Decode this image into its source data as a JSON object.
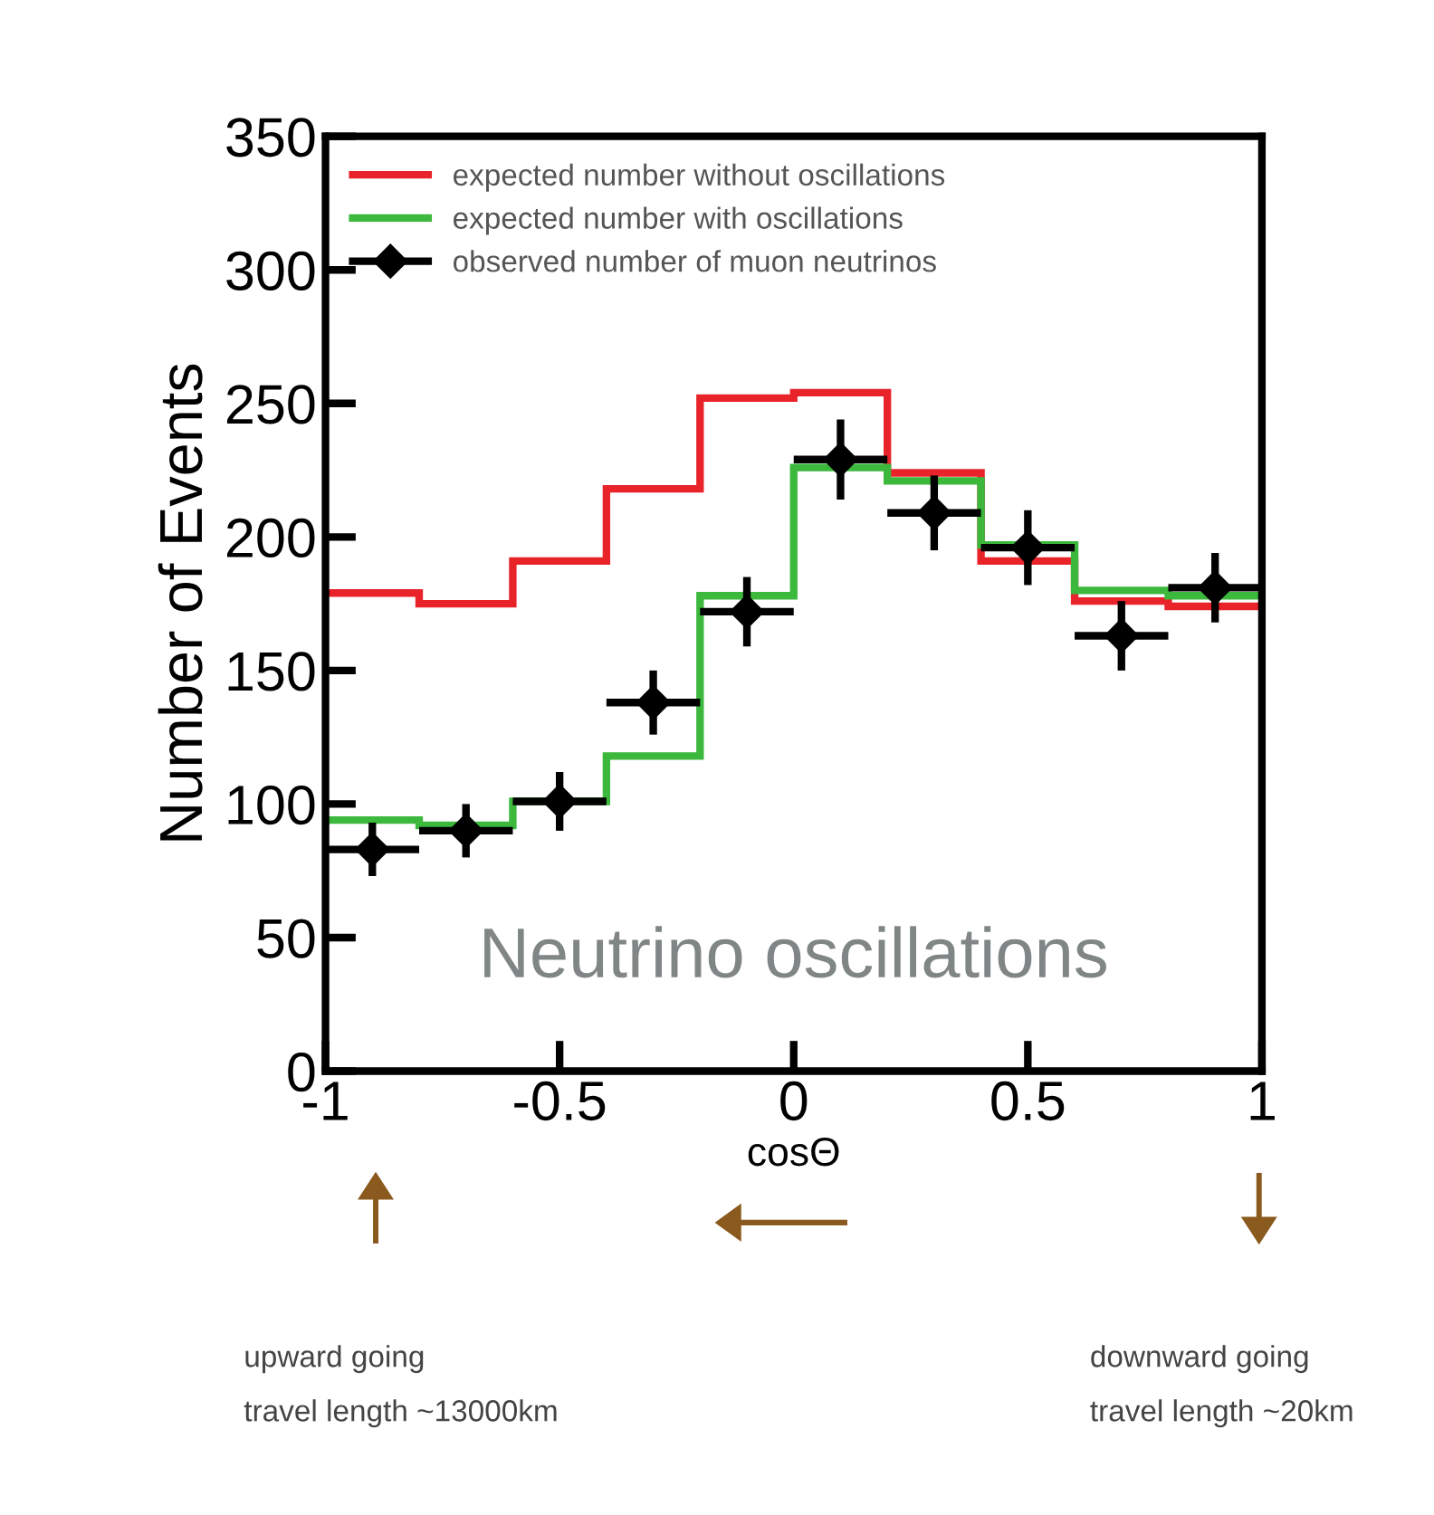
{
  "chart_data": {
    "type": "histogram",
    "ylabel": "Number of Events",
    "xlabel": "cosΘ",
    "bins": [
      -1,
      -0.8,
      -0.6,
      -0.4,
      -0.2,
      0,
      0.2,
      0.4,
      0.6,
      0.8,
      1
    ],
    "series": [
      {
        "name": "expected number without oscillations",
        "color": "#e8232a",
        "values": [
          179,
          175,
          191,
          218,
          252,
          254,
          224,
          191,
          176,
          174
        ]
      },
      {
        "name": "expected number with oscillations",
        "color": "#3cb83c",
        "values": [
          94,
          92,
          101,
          118,
          178,
          226,
          221,
          197,
          180,
          178
        ]
      },
      {
        "name": "observed number of muon neutrinos",
        "type": "scatter",
        "color": "#000000",
        "marker": "diamond",
        "x": [
          -0.9,
          -0.7,
          -0.5,
          -0.3,
          -0.1,
          0.1,
          0.3,
          0.5,
          0.7,
          0.9
        ],
        "values": [
          83,
          90,
          101,
          138,
          172,
          229,
          209,
          196,
          163,
          181
        ],
        "errors": [
          10,
          10,
          11,
          12,
          13,
          15,
          14,
          14,
          13,
          13
        ],
        "xerrors": [
          0.1,
          0.1,
          0.1,
          0.1,
          0.1,
          0.1,
          0.1,
          0.1,
          0.1,
          0.1
        ]
      }
    ],
    "xlim": [
      -1,
      1
    ],
    "xticks": [
      -1,
      -0.5,
      0,
      0.5,
      1
    ],
    "ylim": [
      0,
      350
    ],
    "yticks": [
      0,
      50,
      100,
      150,
      200,
      250,
      300,
      350
    ],
    "legend": "top left",
    "grid": false,
    "annotations": [
      "Neutrino oscillations",
      "upward going\ntravel length ~13000km",
      "downward going\ntravel length ~20km"
    ]
  }
}
